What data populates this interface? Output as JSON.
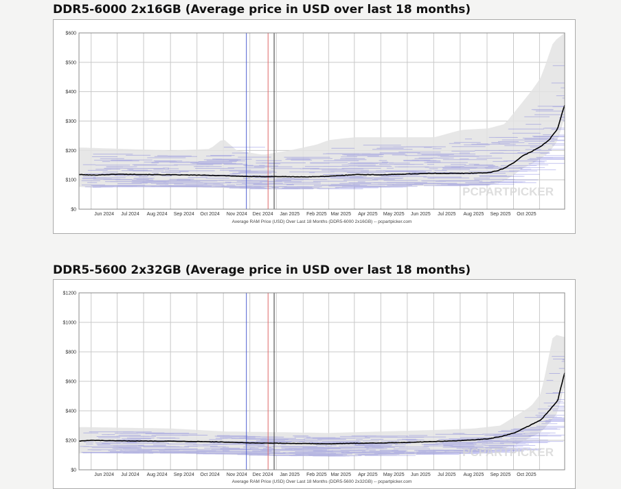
{
  "colors": {
    "background": "#f4f4f3",
    "plot_bg": "#ffffff",
    "grid": "#c8c8c8",
    "avg_line": "#000000",
    "retailer_price_bands": "#5b5bd6",
    "price_range_fill": "#e3e3e3",
    "marker_blue": "#4f5fd0",
    "marker_red": "#e06666",
    "marker_dark": "#333333"
  },
  "watermark": "PCPARTPICKER",
  "chart_data": [
    {
      "type": "line",
      "title": "DDR5-6000 2x16GB (Average price in USD over last 18 months)",
      "xlabel": "Average RAM Price (USD) Over Last 18 Months (DDR5-6000 2x16GB) -- pcpartpicker.com",
      "ylabel": "",
      "x_ticks": [
        "Jun 2024",
        "Jul 2024",
        "Aug 2024",
        "Sep 2024",
        "Oct 2024",
        "Nov 2024",
        "Dec 2024",
        "Jan 2025",
        "Feb 2025",
        "Mar 2025",
        "Apr 2025",
        "May 2025",
        "Jun 2025",
        "Jul 2025",
        "Aug 2025",
        "Sep 2025",
        "Oct 2025"
      ],
      "y_ticks": [
        "$0",
        "$100",
        "$200",
        "$300",
        "$400",
        "$500",
        "$600"
      ],
      "ylim": [
        0,
        600
      ],
      "xlim": [
        "2024-05-17",
        "2025-11-28"
      ],
      "grid": true,
      "vertical_markers": [
        {
          "date": "2024-11-26",
          "color": "#4f5fd0"
        },
        {
          "date": "2024-12-21",
          "color": "#e06666"
        },
        {
          "date": "2024-12-28",
          "color": "#333333"
        }
      ],
      "series": [
        {
          "x": [
            "2024-05-17",
            "2024-06-01",
            "2024-07-01",
            "2024-08-01",
            "2024-09-01",
            "2024-10-01",
            "2024-11-01",
            "2024-12-01",
            "2025-01-01",
            "2025-02-01",
            "2025-03-01",
            "2025-04-01",
            "2025-05-01",
            "2025-06-01",
            "2025-07-01",
            "2025-08-01",
            "2025-09-01",
            "2025-09-10",
            "2025-09-20",
            "2025-10-01",
            "2025-10-10",
            "2025-10-20",
            "2025-11-01",
            "2025-11-10",
            "2025-11-20",
            "2025-11-28"
          ],
          "y": [
            118,
            116,
            119,
            118,
            117,
            116,
            114,
            111,
            111,
            110,
            112,
            118,
            117,
            120,
            122,
            122,
            124,
            130,
            140,
            160,
            180,
            195,
            215,
            235,
            275,
            355
          ]
        },
        {
          "x": [
            "2024-05-17",
            "2024-09-01",
            "2024-10-15",
            "2024-10-30",
            "2024-11-15",
            "2024-12-15",
            "2025-01-15",
            "2025-02-15",
            "2025-03-01",
            "2025-03-15",
            "2025-04-01",
            "2025-05-01",
            "2025-06-01",
            "2025-07-01",
            "2025-08-01",
            "2025-09-01",
            "2025-09-20",
            "2025-10-01",
            "2025-10-20",
            "2025-11-01",
            "2025-11-15",
            "2025-11-28"
          ],
          "y": [
            210,
            200,
            205,
            240,
            200,
            185,
            200,
            220,
            235,
            240,
            245,
            245,
            245,
            245,
            270,
            275,
            290,
            330,
            400,
            450,
            570,
            600
          ]
        }
      ]
    },
    {
      "type": "line",
      "title": "DDR5-5600 2x32GB (Average price in USD over last 18 months)",
      "xlabel": "Average RAM Price (USD) Over Last 18 Months (DDR5-5600 2x32GB) -- pcpartpicker.com",
      "ylabel": "",
      "x_ticks": [
        "Jun 2024",
        "Jul 2024",
        "Aug 2024",
        "Sep 2024",
        "Oct 2024",
        "Nov 2024",
        "Dec 2024",
        "Jan 2025",
        "Feb 2025",
        "Mar 2025",
        "Apr 2025",
        "May 2025",
        "Jun 2025",
        "Jul 2025",
        "Aug 2025",
        "Sep 2025",
        "Oct 2025"
      ],
      "y_ticks": [
        "$0",
        "$200",
        "$400",
        "$600",
        "$800",
        "$1000",
        "$1200"
      ],
      "ylim": [
        0,
        1200
      ],
      "xlim": [
        "2024-05-17",
        "2025-11-28"
      ],
      "grid": true,
      "vertical_markers": [
        {
          "date": "2024-11-26",
          "color": "#4f5fd0"
        },
        {
          "date": "2024-12-21",
          "color": "#e06666"
        },
        {
          "date": "2024-12-28",
          "color": "#333333"
        }
      ],
      "series": [
        {
          "x": [
            "2024-05-17",
            "2024-06-01",
            "2024-07-01",
            "2024-08-01",
            "2024-09-01",
            "2024-10-01",
            "2024-11-01",
            "2024-12-01",
            "2025-01-01",
            "2025-02-01",
            "2025-03-01",
            "2025-04-01",
            "2025-05-01",
            "2025-06-01",
            "2025-07-01",
            "2025-08-01",
            "2025-09-01",
            "2025-09-15",
            "2025-10-01",
            "2025-10-15",
            "2025-11-01",
            "2025-11-10",
            "2025-11-20",
            "2025-11-28"
          ],
          "y": [
            195,
            200,
            196,
            195,
            194,
            192,
            188,
            182,
            180,
            178,
            176,
            180,
            182,
            186,
            192,
            198,
            210,
            225,
            250,
            290,
            340,
            400,
            470,
            660
          ]
        },
        {
          "x": [
            "2024-05-17",
            "2024-09-01",
            "2024-11-01",
            "2025-01-01",
            "2025-03-01",
            "2025-05-01",
            "2025-07-01",
            "2025-08-15",
            "2025-09-15",
            "2025-10-01",
            "2025-10-20",
            "2025-11-01",
            "2025-11-15",
            "2025-11-28"
          ],
          "y": [
            290,
            280,
            260,
            255,
            250,
            260,
            270,
            280,
            300,
            360,
            430,
            520,
            920,
            900
          ]
        }
      ]
    }
  ]
}
